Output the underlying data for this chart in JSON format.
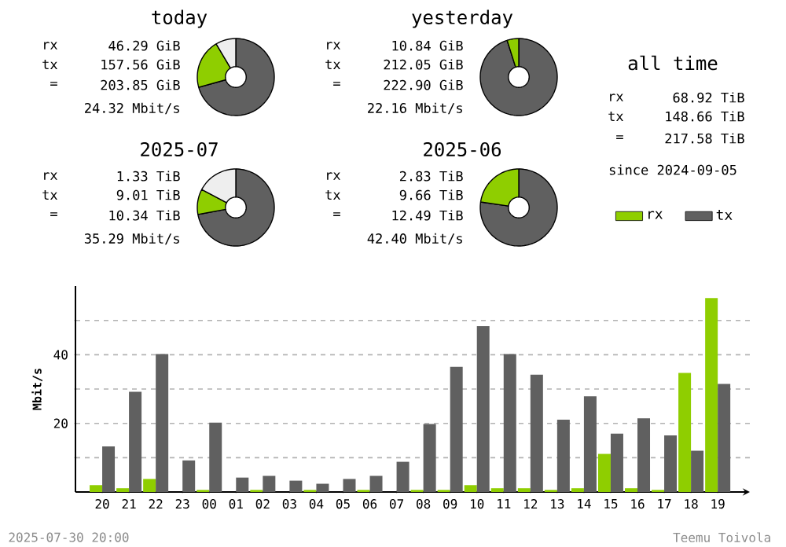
{
  "chart_data": [
    {
      "type": "donut",
      "title": "today",
      "categories": [
        null,
        null,
        null
      ],
      "values": [
        70.7,
        20.8,
        8.5
      ],
      "colors": [
        "#606060",
        "#8fce00",
        "#eeeeee"
      ],
      "annotations": [
        "rx",
        "46.29 GiB",
        "tx",
        "157.56 GiB",
        "=",
        "203.85 GiB",
        "24.32 Mbit/s"
      ]
    },
    {
      "type": "donut",
      "title": "yesterday",
      "categories": [
        null,
        null
      ],
      "values": [
        95.1,
        4.9
      ],
      "colors": [
        "#606060",
        "#8fce00"
      ],
      "annotations": [
        "rx",
        "10.84 GiB",
        "tx",
        "212.05 GiB",
        "=",
        "222.90 GiB",
        "22.16 Mbit/s"
      ]
    },
    {
      "type": "other",
      "title": "all time",
      "annotations": [
        "rx",
        "68.92 TiB",
        "tx",
        "148.66 TiB",
        "=",
        "217.58 TiB",
        "since 2024-09-05"
      ]
    },
    {
      "type": "donut",
      "title": "2025-07",
      "categories": [
        null,
        null,
        null
      ],
      "values": [
        72.1,
        10.6,
        17.3
      ],
      "colors": [
        "#606060",
        "#8fce00",
        "#eeeeee"
      ],
      "annotations": [
        "rx",
        "1.33 TiB",
        "tx",
        "9.01 TiB",
        "=",
        "10.34 TiB",
        "35.29 Mbit/s"
      ]
    },
    {
      "type": "donut",
      "title": "2025-06",
      "categories": [
        null,
        null
      ],
      "values": [
        77.3,
        22.7
      ],
      "colors": [
        "#606060",
        "#8fce00"
      ],
      "annotations": [
        "rx",
        "2.83 TiB",
        "tx",
        "9.66 TiB",
        "=",
        "12.49 TiB",
        "42.40 Mbit/s"
      ]
    },
    {
      "type": "bar",
      "ylabel": "Mbit/s",
      "categories": [
        "20",
        "21",
        "22",
        "23",
        "00",
        "01",
        "02",
        "03",
        "04",
        "05",
        "06",
        "07",
        "08",
        "09",
        "10",
        "11",
        "12",
        "13",
        "14",
        "15",
        "16",
        "17",
        "18",
        "19"
      ],
      "series": [
        {
          "name": "rx",
          "color": "#8fce00",
          "values": [
            2.0,
            1.1,
            3.8,
            0,
            0.6,
            0,
            0.6,
            0,
            0.6,
            0,
            0.6,
            0,
            0.6,
            0.6,
            2.0,
            1.1,
            1.1,
            0.6,
            1.1,
            11.1,
            1.1,
            0.6,
            34.7,
            56.5
          ]
        },
        {
          "name": "tx",
          "color": "#606060",
          "values": [
            13.3,
            29.2,
            40.2,
            9.2,
            20.2,
            4.2,
            4.7,
            3.3,
            2.4,
            3.8,
            4.7,
            8.8,
            19.8,
            36.5,
            48.3,
            40.2,
            34.2,
            21.1,
            27.9,
            17.0,
            21.5,
            16.5,
            12.0,
            31.5
          ]
        }
      ],
      "ylim": [
        0,
        60
      ],
      "yticks": [
        {
          "value": 10,
          "label": null
        },
        20,
        {
          "value": 30,
          "label": null
        },
        40,
        {
          "value": 50,
          "label": null
        }
      ],
      "grid": "y",
      "legend": "top right",
      "annotations": [
        "2025-07-30 20:00",
        "Teemu Toivola"
      ]
    }
  ]
}
